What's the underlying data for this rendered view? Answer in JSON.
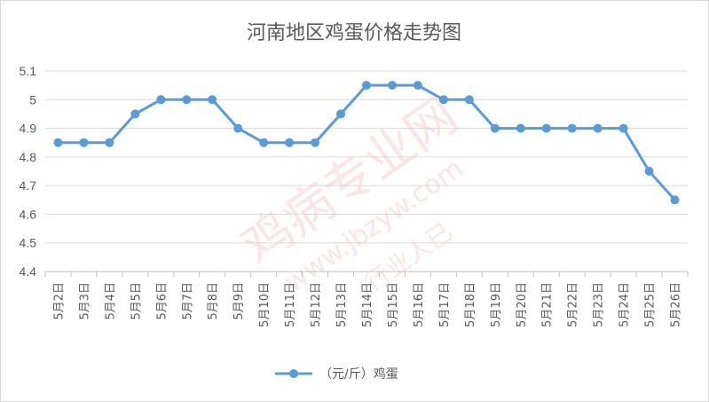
{
  "chart_data": {
    "type": "line",
    "title": "河南地区鸡蛋价格走势图",
    "xlabel": "",
    "ylabel": "",
    "categories": [
      "5月2日",
      "5月3日",
      "5月4日",
      "5月5日",
      "5月6日",
      "5月7日",
      "5月8日",
      "5月9日",
      "5月10日",
      "5月11日",
      "5月12日",
      "5月13日",
      "5月14日",
      "5月15日",
      "5月16日",
      "5月17日",
      "5月18日",
      "5月19日",
      "5月20日",
      "5月21日",
      "5月22日",
      "5月23日",
      "5月24日",
      "5月25日",
      "5月26日"
    ],
    "series": [
      {
        "name": "（元/斤）鸡蛋",
        "color": "#5b9bd5",
        "values": [
          4.85,
          4.85,
          4.85,
          4.95,
          5.0,
          5.0,
          5.0,
          4.9,
          4.85,
          4.85,
          4.85,
          4.95,
          5.05,
          5.05,
          5.05,
          5.0,
          5.0,
          4.9,
          4.9,
          4.9,
          4.9,
          4.9,
          4.9,
          4.75,
          4.65
        ]
      }
    ],
    "ylim": [
      4.4,
      5.1
    ],
    "yticks": [
      "4.4",
      "4.5",
      "4.6",
      "4.7",
      "4.8",
      "4.9",
      "5",
      "5.1"
    ],
    "grid": true,
    "legend_position": "bottom"
  },
  "watermark": {
    "text_main": "鸡病专业网",
    "text_url": "www.jbzyw.com",
    "text_sub": "行业人已"
  }
}
